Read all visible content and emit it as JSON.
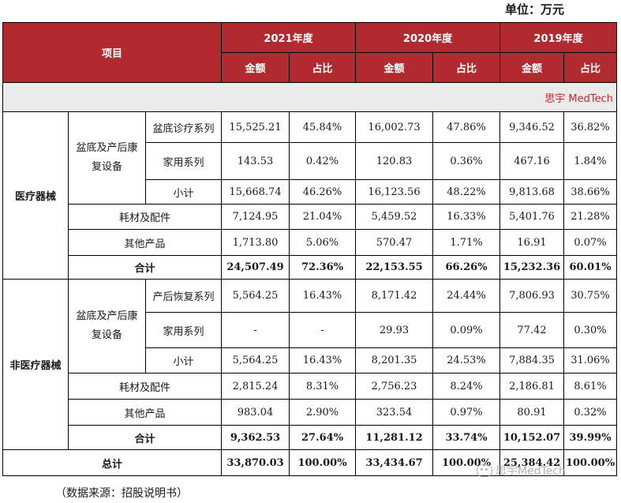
{
  "unit_label": "单位：万元",
  "header": {
    "item_label": "项目",
    "years": [
      "2021年度",
      "2020年度",
      "2019年度"
    ],
    "amount_label": "金额",
    "ratio_label": "占比"
  },
  "brand": "思宇 MedTech",
  "medical": {
    "category": "医疗器械",
    "group_label": "盆底及产后康复设备",
    "rows": [
      {
        "label": "盆底诊疗系列",
        "v": [
          "15,525.21",
          "45.84%",
          "16,002.73",
          "47.86%",
          "9,346.52",
          "36.82%"
        ]
      },
      {
        "label": "家用系列",
        "v": [
          "143.53",
          "0.42%",
          "120.83",
          "0.36%",
          "467.16",
          "1.84%"
        ]
      },
      {
        "label": "小计",
        "v": [
          "15,668.74",
          "46.26%",
          "16,123.56",
          "48.22%",
          "9,813.68",
          "38.66%"
        ]
      },
      {
        "label": "耗材及配件",
        "v": [
          "7,124.95",
          "21.04%",
          "5,459.52",
          "16.33%",
          "5,401.76",
          "21.28%"
        ]
      },
      {
        "label": "其他产品",
        "v": [
          "1,713.80",
          "5.06%",
          "570.47",
          "1.71%",
          "16.91",
          "0.07%"
        ]
      },
      {
        "label": "合计",
        "v": [
          "24,507.49",
          "72.36%",
          "22,153.55",
          "66.26%",
          "15,232.36",
          "60.01%"
        ]
      }
    ]
  },
  "nonmedical": {
    "category": "非医疗器械",
    "group_label": "盆底及产后康复设备",
    "rows": [
      {
        "label": "产后恢复系列",
        "v": [
          "5,564.25",
          "16.43%",
          "8,171.42",
          "24.44%",
          "7,806.93",
          "30.75%"
        ]
      },
      {
        "label": "家用系列",
        "v": [
          "-",
          "-",
          "29.93",
          "0.09%",
          "77.42",
          "0.30%"
        ]
      },
      {
        "label": "小计",
        "v": [
          "5,564.25",
          "16.43%",
          "8,201.35",
          "24.53%",
          "7,884.35",
          "31.06%"
        ]
      },
      {
        "label": "耗材及配件",
        "v": [
          "2,815.24",
          "8.31%",
          "2,756.23",
          "8.24%",
          "2,186.81",
          "8.61%"
        ]
      },
      {
        "label": "其他产品",
        "v": [
          "983.04",
          "2.90%",
          "323.54",
          "0.97%",
          "80.91",
          "0.32%"
        ]
      },
      {
        "label": "合计",
        "v": [
          "9,362.53",
          "27.64%",
          "11,281.12",
          "33.74%",
          "10,152.07",
          "39.99%"
        ]
      }
    ]
  },
  "total": {
    "label": "总计",
    "v": [
      "33,870.03",
      "100.00%",
      "33,434.67",
      "100.00%",
      "25,384.42",
      "100.00%"
    ]
  },
  "source": "（数据来源：招股说明书）",
  "watermark": "思宇MedTech",
  "watermark_icon": "wechat-icon"
}
